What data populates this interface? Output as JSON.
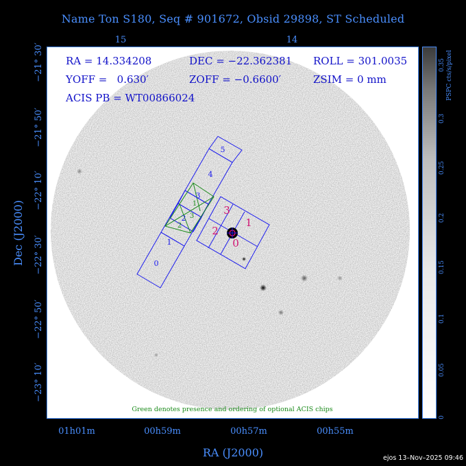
{
  "title": "Name Ton S180, Seq # 901672, Obsid 29898, ST Scheduled",
  "info": {
    "ra": "RA = 14.334208",
    "dec": "DEC = −22.362381",
    "roll": "ROLL = 301.0035",
    "yoff": "YOFF =   0.630′",
    "zoff": "ZOFF = −0.6600′",
    "zsim": "ZSIM = 0 mm",
    "acis_pb": "ACIS PB = WT00866024"
  },
  "top_axis_ticks": [
    "15",
    "14"
  ],
  "bottom_axis_ticks": [
    "01h01m",
    "00h59m",
    "00h57m",
    "00h55m"
  ],
  "left_axis_ticks": [
    "−21° 30′",
    "−21° 50′",
    "−22° 10′",
    "−22° 30′",
    "−22° 50′",
    "−23° 10′"
  ],
  "xlabel": "RA (J2000)",
  "ylabel": "Dec (J2000)",
  "colorbar": {
    "label": "PSPC cts/s/pixel",
    "ticks": [
      "0",
      "0.05",
      "0.1",
      "0.15",
      "0.2",
      "0.25",
      "0.3",
      "0.35"
    ]
  },
  "chips_blue_s": [
    "0",
    "1",
    "2",
    "3",
    "4",
    "5"
  ],
  "chips_blue_i": [
    "0",
    "1",
    "2",
    "3"
  ],
  "chips_green": [
    "1",
    "2",
    "3"
  ],
  "footer_note": "Green denotes presence and ordering of optional ACIS chips",
  "credit": "ejos 13–Nov–2025 09:46",
  "colors": {
    "axis": "#4a8fff",
    "chip_outline": "#1a1aee",
    "optional_chip": "#1a8a1a",
    "i_array_label": "#d01070"
  }
}
